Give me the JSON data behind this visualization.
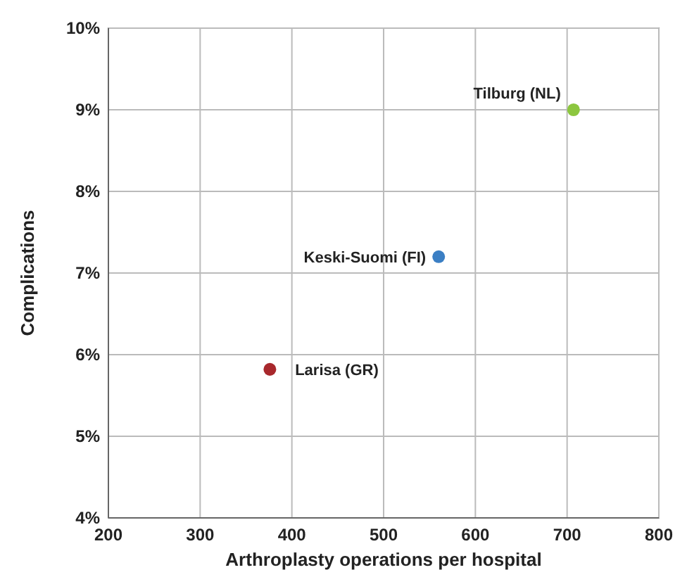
{
  "chart_data": {
    "type": "scatter",
    "xlabel": "Arthroplasty operations per hospital",
    "ylabel": "Complications",
    "xlim": [
      200,
      800
    ],
    "xticks": [
      200,
      300,
      400,
      500,
      600,
      700,
      800
    ],
    "ylim": [
      4,
      10
    ],
    "yticks": [
      {
        "value": 4,
        "label": "4%"
      },
      {
        "value": 5,
        "label": "5%"
      },
      {
        "value": 6,
        "label": "6%"
      },
      {
        "value": 7,
        "label": "7%"
      },
      {
        "value": 8,
        "label": "8%"
      },
      {
        "value": 9,
        "label": "9%"
      },
      {
        "value": 10,
        "label": "10%"
      }
    ],
    "grid": true,
    "marker": "circle",
    "series": [
      {
        "name": "Larisa (GR)",
        "color": "#a8282c",
        "x": [
          376
        ],
        "values": [
          5.82
        ]
      },
      {
        "name": "Keski-Suomi (FI)",
        "color": "#3b7fc4",
        "x": [
          560
        ],
        "values": [
          7.2
        ]
      },
      {
        "name": "Tilburg (NL)",
        "color": "#8cc63f",
        "x": [
          707
        ],
        "values": [
          9.0
        ]
      }
    ]
  }
}
